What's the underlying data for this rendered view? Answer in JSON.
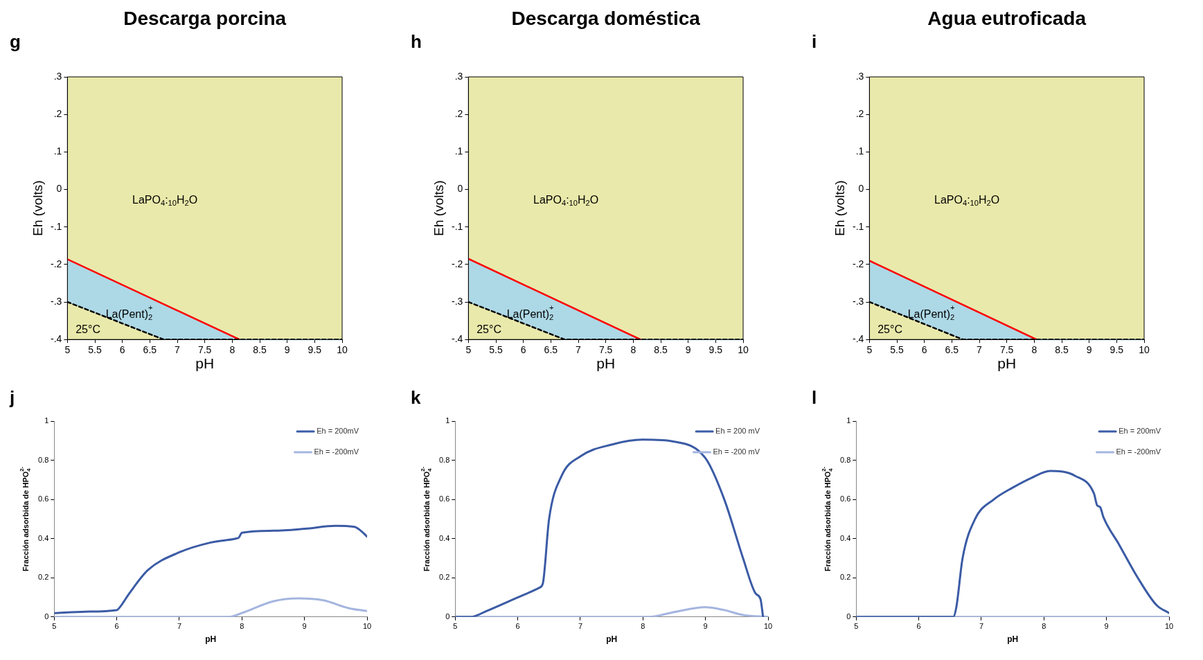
{
  "chart_data": [
    {
      "type": "area",
      "title": "Descarga porcina",
      "xlabel": "pH",
      "ylabel": "Eh (volts)",
      "xlim": [
        5,
        10
      ],
      "xticks": [
        5,
        5.5,
        6,
        6.5,
        7,
        7.5,
        8,
        8.5,
        9,
        9.5,
        10
      ],
      "ylim": [
        -0.4,
        0.3
      ],
      "yticks": [
        {
          "value": -0.4,
          "label": "-.4"
        },
        {
          "value": -0.3,
          "label": "-.3"
        },
        {
          "value": -0.2,
          "label": "-.2"
        },
        {
          "value": -0.1,
          "label": "-.1"
        },
        0,
        {
          "value": 0.1,
          "label": ".1"
        },
        {
          "value": 0.2,
          "label": ".2"
        },
        {
          "value": 0.3,
          "label": ".3"
        }
      ],
      "grid": false,
      "legend": false,
      "marker": "none",
      "annotations": [
        "g",
        "LaPO$_{4}$:$_{10}$H$_{2}$O",
        "La(Pent)$_{2}$$^{+}$",
        "25°C"
      ],
      "bands": [
        {
          "axis": "y",
          "from": -0.4,
          "to": 0.3,
          "color": "#e9e9ab"
        }
      ],
      "series": [
        {
          "type": "area",
          "color": "#add8e6",
          "x": [
            5,
            8.13,
            10
          ],
          "values": [
            -0.186,
            -0.4,
            -0.4
          ]
        },
        {
          "type": "line",
          "color": "#000000",
          "line_style": "dashed",
          "x": [
            5,
            6.75,
            10
          ],
          "values": [
            -0.3,
            -0.4,
            -0.4
          ]
        },
        {
          "type": "line",
          "color": "#ff0000",
          "x": [
            5,
            8.13
          ],
          "values": [
            -0.186,
            -0.4
          ]
        }
      ]
    },
    {
      "type": "area",
      "title": "Descarga doméstica",
      "xlabel": "pH",
      "ylabel": "Eh (volts)",
      "xlim": [
        5,
        10
      ],
      "xticks": [
        5,
        5.5,
        6,
        6.5,
        7,
        7.5,
        8,
        8.5,
        9,
        9.5,
        10
      ],
      "ylim": [
        -0.4,
        0.3
      ],
      "yticks": [
        {
          "value": -0.4,
          "label": "-.4"
        },
        {
          "value": -0.3,
          "label": "-.3"
        },
        {
          "value": -0.2,
          "label": "-.2"
        },
        {
          "value": -0.1,
          "label": "-.1"
        },
        0,
        {
          "value": 0.1,
          "label": ".1"
        },
        {
          "value": 0.2,
          "label": ".2"
        },
        {
          "value": 0.3,
          "label": ".3"
        }
      ],
      "grid": false,
      "legend": false,
      "marker": "none",
      "annotations": [
        "h",
        "LaPO$_{4}$:$_{10}$H$_{2}$O",
        "La(Pent)$_{2}$$^{+}$",
        "25°C"
      ],
      "bands": [
        {
          "axis": "y",
          "from": -0.4,
          "to": 0.3,
          "color": "#e9e9ab"
        }
      ],
      "series": [
        {
          "type": "area",
          "color": "#add8e6",
          "x": [
            5,
            8.13,
            10
          ],
          "values": [
            -0.185,
            -0.4,
            -0.4
          ]
        },
        {
          "type": "line",
          "color": "#000000",
          "line_style": "dashed",
          "x": [
            5,
            6.75,
            10
          ],
          "values": [
            -0.3,
            -0.4,
            -0.4
          ]
        },
        {
          "type": "line",
          "color": "#ff0000",
          "x": [
            5,
            8.13
          ],
          "values": [
            -0.185,
            -0.4
          ]
        }
      ]
    },
    {
      "type": "area",
      "title": "Agua eutroficada",
      "xlabel": "pH",
      "ylabel": "Eh (volts)",
      "xlim": [
        5,
        10
      ],
      "xticks": [
        5,
        5.5,
        6,
        6.5,
        7,
        7.5,
        8,
        8.5,
        9,
        9.5,
        10
      ],
      "ylim": [
        -0.4,
        0.3
      ],
      "yticks": [
        {
          "value": -0.4,
          "label": "-.4"
        },
        {
          "value": -0.3,
          "label": "-.3"
        },
        {
          "value": -0.2,
          "label": "-.2"
        },
        {
          "value": -0.1,
          "label": "-.1"
        },
        0,
        {
          "value": 0.1,
          "label": ".1"
        },
        {
          "value": 0.2,
          "label": ".2"
        },
        {
          "value": 0.3,
          "label": ".3"
        }
      ],
      "grid": false,
      "legend": false,
      "marker": "none",
      "annotations": [
        "i",
        "LaPO$_{4}$:$_{10}$H$_{2}$O",
        "La(Pent)$_{2}$$^{+}$",
        "25°C"
      ],
      "bands": [
        {
          "axis": "y",
          "from": -0.4,
          "to": 0.3,
          "color": "#e9e9ab"
        }
      ],
      "series": [
        {
          "type": "area",
          "color": "#add8e6",
          "x": [
            5,
            8.04,
            10
          ],
          "values": [
            -0.19,
            -0.4,
            -0.4
          ]
        },
        {
          "type": "line",
          "color": "#000000",
          "line_style": "dashed",
          "x": [
            5,
            6.7,
            10
          ],
          "values": [
            -0.3,
            -0.4,
            -0.4
          ]
        },
        {
          "type": "line",
          "color": "#ff0000",
          "x": [
            5,
            8.04
          ],
          "values": [
            -0.19,
            -0.4
          ]
        }
      ]
    },
    {
      "type": "line",
      "xlabel": "pH",
      "ylabel": "Fracción adsorbida de HPO$_{4}$$^{2-}$",
      "xlim": [
        5,
        10
      ],
      "xticks": [
        5,
        6,
        7,
        8,
        9,
        10
      ],
      "ylim": [
        0,
        1
      ],
      "yticks": [
        0,
        0.2,
        0.4,
        0.6,
        0.8,
        1
      ],
      "grid": false,
      "legend": "top right",
      "marker": "none",
      "annotations": [
        "j"
      ],
      "series": [
        {
          "name": "Eh = 200mV",
          "color": "#3b5ba5",
          "x": [
            5,
            5.5,
            6,
            6.05,
            6.2,
            6.5,
            7,
            7.5,
            7.9,
            7.95,
            8,
            8.5,
            9,
            9.5,
            9.8,
            9.9,
            10
          ],
          "values": [
            0.02,
            0.027,
            0.035,
            0.05,
            0.12,
            0.24,
            0.33,
            0.38,
            0.4,
            0.405,
            0.43,
            0.44,
            0.45,
            0.465,
            0.46,
            0.44,
            0.41
          ]
        },
        {
          "name": "Eh = -200mV",
          "color": "#a4b5df",
          "x": [
            5,
            7.8,
            8,
            8.5,
            8.9,
            9.3,
            9.7,
            10
          ],
          "values": [
            0,
            0,
            0.02,
            0.08,
            0.095,
            0.085,
            0.045,
            0.03
          ]
        }
      ]
    },
    {
      "type": "line",
      "xlabel": "pH",
      "ylabel": "Fracción adsorbida de HPO$_{4}$$^{2-}$",
      "xlim": [
        5,
        10
      ],
      "xticks": [
        5,
        6,
        7,
        8,
        9,
        10
      ],
      "ylim": [
        0,
        1
      ],
      "yticks": [
        0,
        0.2,
        0.4,
        0.6,
        0.8,
        1
      ],
      "grid": false,
      "legend": "top right",
      "marker": "none",
      "annotations": [
        "k"
      ],
      "series": [
        {
          "name": "Eh = 200 mV",
          "color": "#3b5ba5",
          "x": [
            5,
            5.25,
            5.5,
            6,
            6.35,
            6.4,
            6.5,
            6.7,
            7,
            7.5,
            8,
            8.5,
            9,
            9.3,
            9.6,
            9.8,
            9.88,
            9.92
          ],
          "values": [
            0,
            0,
            0.03,
            0.1,
            0.15,
            0.17,
            0.5,
            0.72,
            0.82,
            0.88,
            0.905,
            0.895,
            0.81,
            0.6,
            0.3,
            0.12,
            0.09,
            0
          ]
        },
        {
          "name": "Eh = -200 mV",
          "color": "#a4b5df",
          "x": [
            5,
            8.1,
            8.5,
            9,
            9.3,
            9.6,
            10
          ],
          "values": [
            0,
            0,
            0.025,
            0.05,
            0.035,
            0.01,
            0
          ]
        }
      ]
    },
    {
      "type": "line",
      "xlabel": "pH",
      "ylabel": "Fracción adsorbida de HPO$_{4}$$^{2-}$",
      "xlim": [
        5,
        10
      ],
      "xticks": [
        5,
        6,
        7,
        8,
        9,
        10
      ],
      "ylim": [
        0,
        1
      ],
      "yticks": [
        0,
        0.2,
        0.4,
        0.6,
        0.8,
        1
      ],
      "grid": false,
      "legend": "top right",
      "marker": "none",
      "annotations": [
        "l"
      ],
      "series": [
        {
          "name": "Eh = 200mV",
          "color": "#3b5ba5",
          "x": [
            5,
            6.55,
            6.6,
            6.7,
            6.9,
            7.2,
            7.5,
            7.8,
            8.1,
            8.5,
            8.8,
            8.85,
            8.9,
            8.95,
            9.2,
            9.5,
            9.8,
            10
          ],
          "values": [
            0,
            0,
            0.05,
            0.3,
            0.5,
            0.6,
            0.66,
            0.71,
            0.745,
            0.72,
            0.63,
            0.57,
            0.56,
            0.51,
            0.37,
            0.2,
            0.06,
            0.02
          ]
        },
        {
          "name": "Eh = -200mV",
          "color": "#a4b5df",
          "x": [
            5,
            10
          ],
          "values": [
            0,
            0
          ]
        }
      ]
    }
  ]
}
